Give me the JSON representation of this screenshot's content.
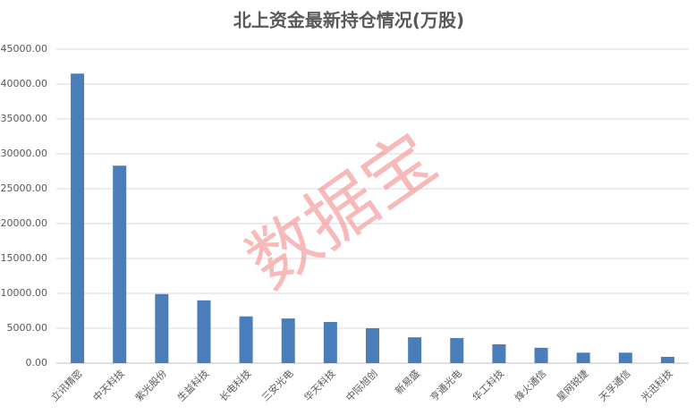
{
  "chart_data": {
    "type": "bar",
    "title": "北上资金最新持仓情况(万股)",
    "watermark": "数据宝",
    "categories": [
      "立讯精密",
      "中天科技",
      "紫光股份",
      "生益科技",
      "长电科技",
      "三安光电",
      "华天科技",
      "中际旭创",
      "新易盛",
      "亨通光电",
      "华工科技",
      "烽火通信",
      "星网锐捷",
      "天孚通信",
      "光迅科技"
    ],
    "values": [
      41500,
      28300,
      9900,
      9000,
      6700,
      6400,
      5900,
      5000,
      3700,
      3600,
      2700,
      2200,
      1500,
      1500,
      900
    ],
    "color": "#4a7ebb",
    "ylim": [
      0,
      45000
    ],
    "yticks": [
      {
        "value": 0,
        "label": "0.00"
      },
      {
        "value": 5000,
        "label": "5000.00"
      },
      {
        "value": 10000,
        "label": "10000.00"
      },
      {
        "value": 15000,
        "label": "15000.00"
      },
      {
        "value": 20000,
        "label": "20000.00"
      },
      {
        "value": 25000,
        "label": "25000.00"
      },
      {
        "value": 30000,
        "label": "30000.00"
      },
      {
        "value": 35000,
        "label": "35000.00"
      },
      {
        "value": 40000,
        "label": "40000.00"
      },
      {
        "value": 45000,
        "label": "45000.00"
      }
    ],
    "grid": true
  }
}
